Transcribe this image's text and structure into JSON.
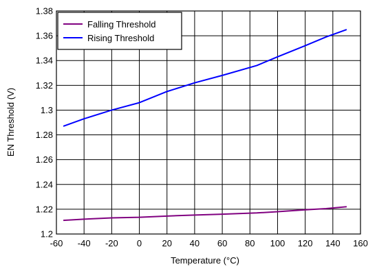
{
  "chart_data": {
    "type": "line",
    "xlabel": "Temperature (°C)",
    "ylabel": "EN Threshold (V)",
    "xlim": [
      -60,
      160
    ],
    "ylim": [
      1.2,
      1.38
    ],
    "xticks": [
      -60,
      -40,
      -20,
      0,
      20,
      40,
      60,
      80,
      100,
      120,
      140,
      160
    ],
    "yticks": [
      1.2,
      1.22,
      1.24,
      1.26,
      1.28,
      1.3,
      1.32,
      1.34,
      1.36,
      1.38
    ],
    "xtick_labels": [
      "-60",
      "-40",
      "-20",
      "0",
      "20",
      "40",
      "60",
      "80",
      "100",
      "120",
      "140",
      "160"
    ],
    "ytick_labels": [
      "1.2",
      "1.22",
      "1.24",
      "1.26",
      "1.28",
      "1.3",
      "1.32",
      "1.34",
      "1.36",
      "1.38"
    ],
    "grid": true,
    "legend_position": "top-left",
    "series": [
      {
        "name": "Falling Threshold",
        "color": "#800080",
        "x": [
          -55,
          -40,
          -20,
          0,
          20,
          40,
          60,
          85,
          100,
          120,
          135,
          150
        ],
        "y": [
          1.211,
          1.212,
          1.213,
          1.2135,
          1.2145,
          1.2153,
          1.216,
          1.217,
          1.218,
          1.2195,
          1.2205,
          1.222
        ]
      },
      {
        "name": "Rising Threshold",
        "color": "#0000ff",
        "x": [
          -55,
          -40,
          -20,
          0,
          20,
          40,
          60,
          85,
          100,
          120,
          135,
          150
        ],
        "y": [
          1.287,
          1.293,
          1.3,
          1.306,
          1.315,
          1.322,
          1.328,
          1.336,
          1.343,
          1.352,
          1.359,
          1.365
        ]
      }
    ]
  }
}
